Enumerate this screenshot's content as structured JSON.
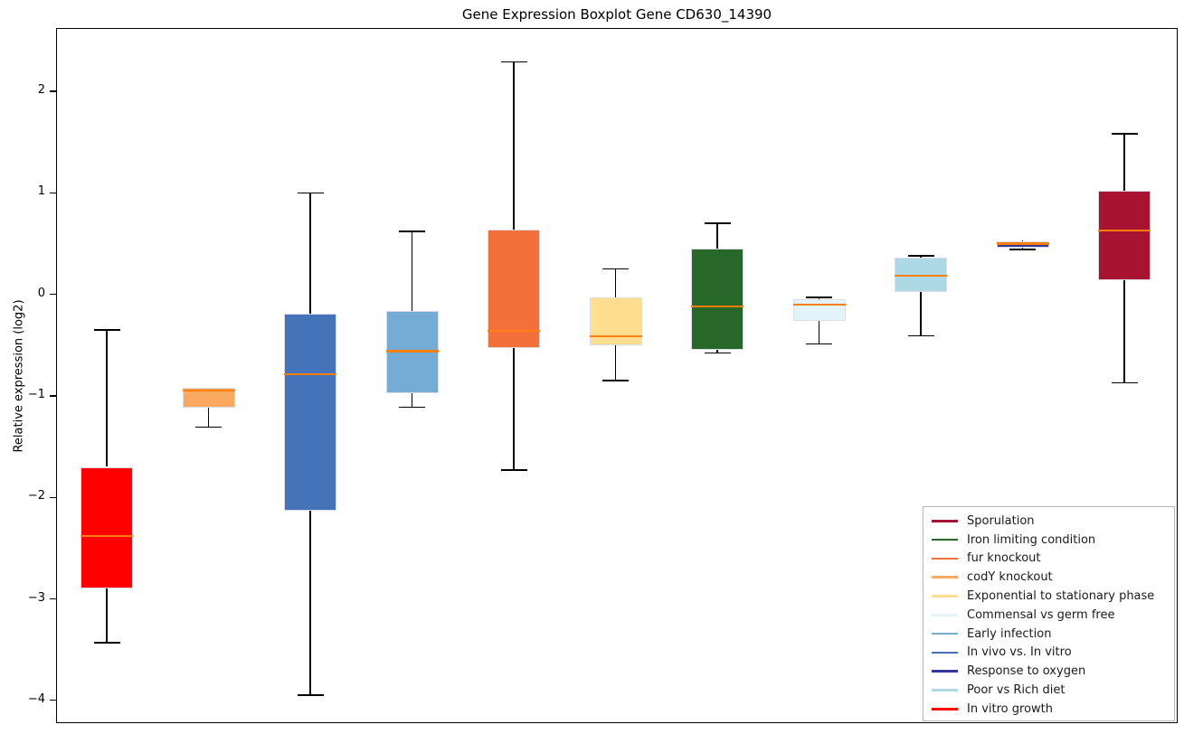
{
  "title": "Gene Expression Boxplot Gene CD630_14390",
  "chart_data": {
    "type": "boxplot",
    "title": "Gene Expression Boxplot Gene CD630_14390",
    "xlabel": "",
    "ylabel": "Relative expression (log2)",
    "ylim": [
      -4.23,
      2.61
    ],
    "yticks": [
      2,
      1,
      0,
      -1,
      -2,
      -3,
      -4
    ],
    "ytick_labels": [
      "2",
      "1",
      "0",
      "−1",
      "−2",
      "−3",
      "−4"
    ],
    "grid": false,
    "legend_position": "lower right",
    "colors": {
      "median_line": "#ff7f0e",
      "whisker": "#000000",
      "box_edge": "#dcdce8"
    },
    "series": [
      {
        "name": "In vitro growth",
        "color": "#ff0000",
        "whisker_low": -3.43,
        "q1": -2.9,
        "median": -2.38,
        "q3": -1.7,
        "whisker_high": -0.35
      },
      {
        "name": "codY knockout",
        "color": "#fba95f",
        "whisker_low": -1.31,
        "q1": -1.12,
        "median": -0.95,
        "q3": -0.92,
        "whisker_high": -0.92
      },
      {
        "name": "In vivo vs. In vitro",
        "color": "#4473ba",
        "whisker_low": -3.95,
        "q1": -2.13,
        "median": -0.79,
        "q3": -0.19,
        "whisker_high": 1.0
      },
      {
        "name": "Early infection",
        "color": "#74acd5",
        "whisker_low": -1.11,
        "q1": -0.97,
        "median": -0.56,
        "q3": -0.16,
        "whisker_high": 0.62
      },
      {
        "name": "fur knockout",
        "color": "#f3703a",
        "whisker_low": -1.73,
        "q1": -0.53,
        "median": -0.36,
        "q3": 0.64,
        "whisker_high": 2.29
      },
      {
        "name": "Exponential to stationary phase",
        "color": "#ffde8f",
        "whisker_low": -0.85,
        "q1": -0.5,
        "median": -0.41,
        "q3": -0.03,
        "whisker_high": 0.25
      },
      {
        "name": "Iron limiting condition",
        "color": "#27682a",
        "whisker_low": -0.58,
        "q1": -0.55,
        "median": -0.12,
        "q3": 0.45,
        "whisker_high": 0.7
      },
      {
        "name": "Commensal vs germ free",
        "color": "#e2f3f9",
        "whisker_low": -0.49,
        "q1": -0.26,
        "median": -0.1,
        "q3": -0.05,
        "whisker_high": -0.03
      },
      {
        "name": "Poor vs Rich diet",
        "color": "#add8e6",
        "whisker_low": -0.41,
        "q1": 0.02,
        "median": 0.18,
        "q3": 0.36,
        "whisker_high": 0.38
      },
      {
        "name": "Response to oxygen",
        "color": "#34379b",
        "whisker_low": 0.44,
        "q1": 0.46,
        "median": 0.5,
        "q3": 0.52,
        "whisker_high": 0.53
      },
      {
        "name": "Sporulation",
        "color": "#a81332",
        "whisker_low": -0.87,
        "q1": 0.14,
        "median": 0.63,
        "q3": 1.02,
        "whisker_high": 1.58
      }
    ],
    "legend": [
      {
        "label": "Sporulation",
        "color": "#a81332"
      },
      {
        "label": "Iron limiting condition",
        "color": "#27682a"
      },
      {
        "label": "fur knockout",
        "color": "#f3703a"
      },
      {
        "label": "codY knockout",
        "color": "#fba95f"
      },
      {
        "label": "Exponential to stationary phase",
        "color": "#ffde8f"
      },
      {
        "label": "Commensal vs germ free",
        "color": "#e2f3f9"
      },
      {
        "label": "Early infection",
        "color": "#74acd5"
      },
      {
        "label": "In vivo vs. In vitro",
        "color": "#4473ba"
      },
      {
        "label": "Response to oxygen",
        "color": "#34379b"
      },
      {
        "label": "Poor vs Rich diet",
        "color": "#add8e6"
      },
      {
        "label": "In vitro growth",
        "color": "#ff0000"
      }
    ]
  }
}
